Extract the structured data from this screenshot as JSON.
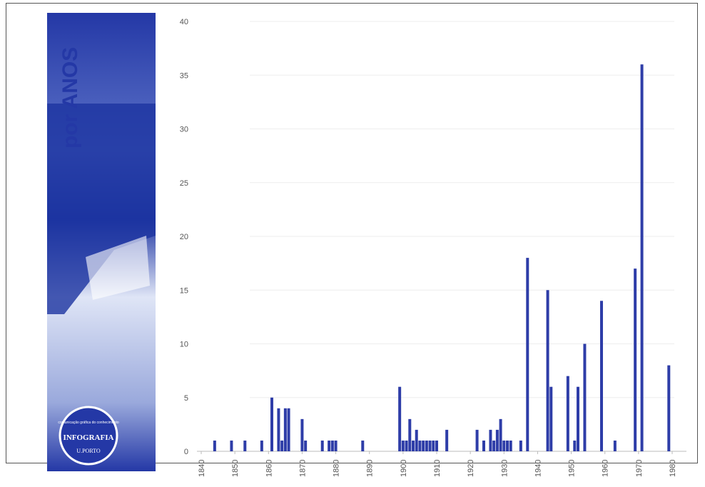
{
  "sidebar": {
    "title": "por ANOS",
    "badge_caption": "comunicação gráfica do conhecimento",
    "badge_title": "INFOGRAFIA",
    "badge_logo": "U.PORTO"
  },
  "chart_data": {
    "type": "bar",
    "color": "#2e3da8",
    "grid": true,
    "x": [
      1844,
      1849,
      1853,
      1858,
      1861,
      1863,
      1864,
      1865,
      1866,
      1870,
      1871,
      1876,
      1878,
      1879,
      1880,
      1888,
      1899,
      1900,
      1901,
      1902,
      1903,
      1904,
      1905,
      1906,
      1907,
      1908,
      1909,
      1910,
      1913,
      1922,
      1924,
      1926,
      1927,
      1928,
      1929,
      1930,
      1931,
      1932,
      1935,
      1937,
      1943,
      1944,
      1949,
      1951,
      1952,
      1954,
      1959,
      1963,
      1969,
      1971,
      1979
    ],
    "values": [
      1,
      1,
      1,
      1,
      5,
      4,
      1,
      4,
      4,
      3,
      1,
      1,
      1,
      1,
      1,
      1,
      6,
      1,
      1,
      3,
      1,
      2,
      1,
      1,
      1,
      1,
      1,
      1,
      2,
      2,
      1,
      2,
      1,
      2,
      3,
      1,
      1,
      1,
      1,
      18,
      15,
      6,
      7,
      1,
      6,
      10,
      14,
      1,
      17,
      36,
      8
    ],
    "xlim": [
      1840,
      1980
    ],
    "xticks": [
      1840,
      1850,
      1860,
      1870,
      1880,
      1890,
      1900,
      1910,
      1920,
      1930,
      1940,
      1950,
      1960,
      1970,
      1980
    ],
    "ylim": [
      0,
      40
    ],
    "yticks": [
      0,
      5,
      10,
      15,
      20,
      25,
      30,
      35,
      40
    ]
  }
}
